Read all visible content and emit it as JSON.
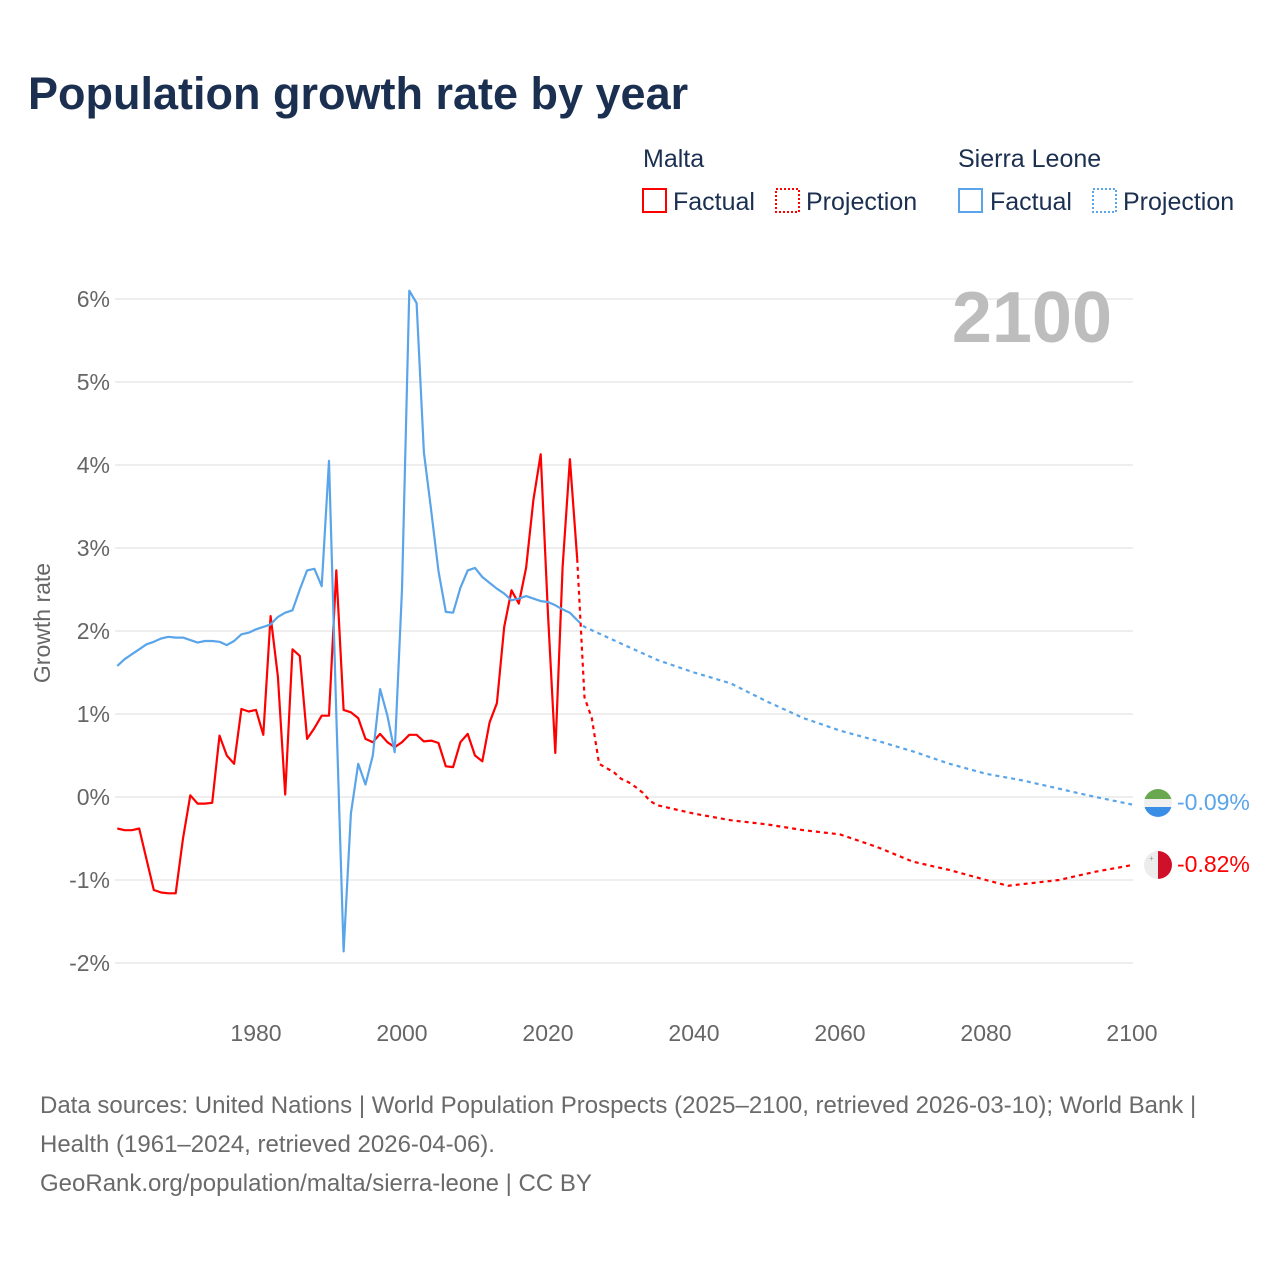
{
  "title": "Population growth rate by year",
  "legend": {
    "groups": [
      {
        "country": "Malta",
        "color": "#ff0000",
        "factual": "Factual",
        "projection": "Projection"
      },
      {
        "country": "Sierra Leone",
        "color": "#5aa5ea",
        "factual": "Factual",
        "projection": "Projection"
      }
    ]
  },
  "year_indicator": "2100",
  "end_labels": {
    "sierra_leone": "-0.09%",
    "malta": "-0.82%"
  },
  "footer": {
    "sources": "Data sources: United Nations | World Population Prospects (2025–2100, retrieved 2026-03-10); World Bank | Health (1961–2024, retrieved 2026-04-06).",
    "link": "GeoRank.org/population/malta/sierra-leone | CC BY"
  },
  "chart_data": {
    "type": "line",
    "title": "Population growth rate by year",
    "xlabel": "",
    "ylabel": "Growth rate",
    "xlim": [
      1961,
      2100
    ],
    "ylim": [
      -2.4,
      6.2
    ],
    "xticks": [
      1980,
      2000,
      2020,
      2040,
      2060,
      2080,
      2100
    ],
    "xtick_labels": [
      "1980",
      "2000",
      "2020",
      "2040",
      "2060",
      "2080",
      "2100"
    ],
    "yticks": [
      -2,
      -1,
      0,
      1,
      2,
      3,
      4,
      5,
      6
    ],
    "ytick_labels": [
      "-2%",
      "-1%",
      "0%",
      "1%",
      "2%",
      "3%",
      "4%",
      "5%",
      "6%"
    ],
    "grid": true,
    "legend_position": "top-right",
    "series": [
      {
        "name": "Malta Factual",
        "color": "#ff0000",
        "dashed": false,
        "x": [
          1961,
          1962,
          1963,
          1964,
          1965,
          1966,
          1967,
          1968,
          1969,
          1970,
          1971,
          1972,
          1973,
          1974,
          1975,
          1976,
          1977,
          1978,
          1979,
          1980,
          1981,
          1982,
          1983,
          1984,
          1985,
          1986,
          1987,
          1988,
          1989,
          1990,
          1991,
          1992,
          1993,
          1994,
          1995,
          1996,
          1997,
          1998,
          1999,
          2000,
          2001,
          2002,
          2003,
          2004,
          2005,
          2006,
          2007,
          2008,
          2009,
          2010,
          2011,
          2012,
          2013,
          2014,
          2015,
          2016,
          2017,
          2018,
          2019,
          2020,
          2021,
          2022,
          2023,
          2024
        ],
        "y": [
          -0.38,
          -0.4,
          -0.4,
          -0.38,
          -0.75,
          -1.12,
          -1.15,
          -1.16,
          -1.16,
          -0.5,
          0.02,
          -0.08,
          -0.08,
          -0.07,
          0.74,
          0.5,
          0.4,
          1.06,
          1.03,
          1.05,
          0.75,
          2.18,
          1.45,
          0.03,
          1.78,
          1.7,
          0.7,
          0.83,
          0.98,
          0.98,
          2.73,
          1.05,
          1.02,
          0.95,
          0.7,
          0.66,
          0.76,
          0.66,
          0.6,
          0.66,
          0.75,
          0.75,
          0.67,
          0.68,
          0.65,
          0.37,
          0.36,
          0.66,
          0.76,
          0.5,
          0.43,
          0.9,
          1.13,
          2.05,
          2.49,
          2.33,
          2.76,
          3.58,
          4.13,
          2.2,
          0.53,
          2.77,
          4.07,
          2.87
        ]
      },
      {
        "name": "Malta Projection",
        "color": "#ff0000",
        "dashed": true,
        "x": [
          2024,
          2025,
          2026,
          2027,
          2028,
          2029,
          2030,
          2031,
          2032,
          2033,
          2034,
          2035,
          2040,
          2045,
          2050,
          2055,
          2060,
          2065,
          2070,
          2075,
          2080,
          2083,
          2090,
          2095,
          2100
        ],
        "y": [
          2.87,
          1.2,
          0.95,
          0.4,
          0.35,
          0.3,
          0.22,
          0.18,
          0.12,
          0.05,
          -0.05,
          -0.1,
          -0.2,
          -0.28,
          -0.33,
          -0.4,
          -0.45,
          -0.6,
          -0.78,
          -0.88,
          -1.0,
          -1.07,
          -1.0,
          -0.9,
          -0.82
        ]
      },
      {
        "name": "Sierra Leone Factual",
        "color": "#5aa5ea",
        "dashed": false,
        "x": [
          1961,
          1962,
          1963,
          1964,
          1965,
          1966,
          1967,
          1968,
          1969,
          1970,
          1971,
          1972,
          1973,
          1974,
          1975,
          1976,
          1977,
          1978,
          1979,
          1980,
          1981,
          1982,
          1983,
          1984,
          1985,
          1986,
          1987,
          1988,
          1989,
          1990,
          1991,
          1992,
          1993,
          1994,
          1995,
          1996,
          1997,
          1998,
          1999,
          2000,
          2001,
          2002,
          2003,
          2004,
          2005,
          2006,
          2007,
          2008,
          2009,
          2010,
          2011,
          2012,
          2013,
          2014,
          2015,
          2016,
          2017,
          2018,
          2019,
          2020,
          2021,
          2022,
          2023,
          2024
        ],
        "y": [
          1.58,
          1.66,
          1.72,
          1.78,
          1.84,
          1.87,
          1.91,
          1.93,
          1.92,
          1.92,
          1.89,
          1.86,
          1.88,
          1.88,
          1.87,
          1.83,
          1.88,
          1.96,
          1.98,
          2.02,
          2.05,
          2.08,
          2.17,
          2.22,
          2.25,
          2.5,
          2.73,
          2.75,
          2.54,
          4.05,
          1.0,
          -1.86,
          -0.2,
          0.4,
          0.15,
          0.5,
          1.3,
          0.98,
          0.54,
          2.5,
          6.1,
          5.95,
          4.15,
          3.45,
          2.72,
          2.23,
          2.22,
          2.52,
          2.73,
          2.76,
          2.65,
          2.58,
          2.51,
          2.45,
          2.37,
          2.39,
          2.42,
          2.39,
          2.36,
          2.35,
          2.31,
          2.26,
          2.22,
          2.13
        ]
      },
      {
        "name": "Sierra Leone Projection",
        "color": "#5aa5ea",
        "dashed": true,
        "x": [
          2024,
          2025,
          2030,
          2035,
          2040,
          2045,
          2050,
          2055,
          2060,
          2065,
          2070,
          2075,
          2080,
          2085,
          2090,
          2095,
          2100
        ],
        "y": [
          2.13,
          2.05,
          1.85,
          1.65,
          1.5,
          1.37,
          1.15,
          0.95,
          0.8,
          0.68,
          0.55,
          0.4,
          0.28,
          0.2,
          0.1,
          0.0,
          -0.09
        ]
      }
    ]
  }
}
